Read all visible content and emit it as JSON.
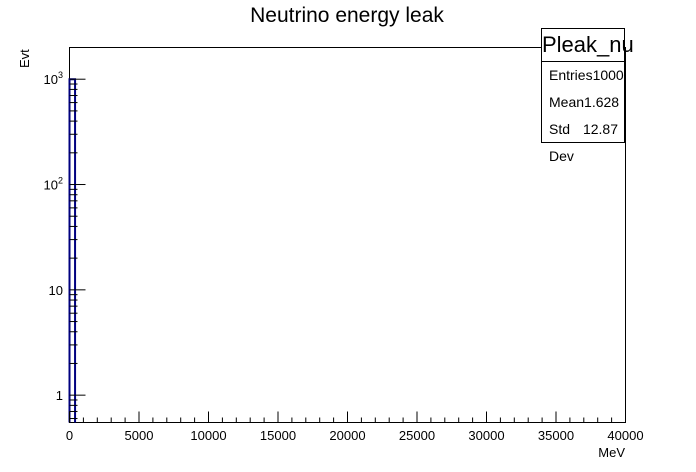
{
  "chart_data": {
    "type": "bar",
    "title": "Neutrino energy leak",
    "xlabel": "MeV",
    "ylabel": "Evt",
    "xlim": [
      0,
      40000
    ],
    "ylim": [
      0.55,
      2000
    ],
    "log_y": true,
    "grid": false,
    "x_ticks": [
      "0",
      "5000",
      "10000",
      "15000",
      "20000",
      "25000",
      "30000",
      "35000",
      "40000"
    ],
    "y_ticks": [
      {
        "value": 1,
        "base": "1",
        "exp": ""
      },
      {
        "value": 10,
        "base": "10",
        "exp": ""
      },
      {
        "value": 100,
        "base": "10",
        "exp": "2"
      },
      {
        "value": 1000,
        "base": "10",
        "exp": "3"
      }
    ],
    "series": [
      {
        "bins": [
          {
            "x0": 0,
            "x1": 400,
            "value": 1000
          }
        ]
      }
    ],
    "line_color": "#000080"
  },
  "stats": {
    "name": "Pleak_nu",
    "rows": [
      {
        "label": "Entries",
        "value": "1000"
      },
      {
        "label": "Mean",
        "value": "1.628"
      },
      {
        "label": "Std Dev",
        "value": "12.87"
      }
    ]
  }
}
